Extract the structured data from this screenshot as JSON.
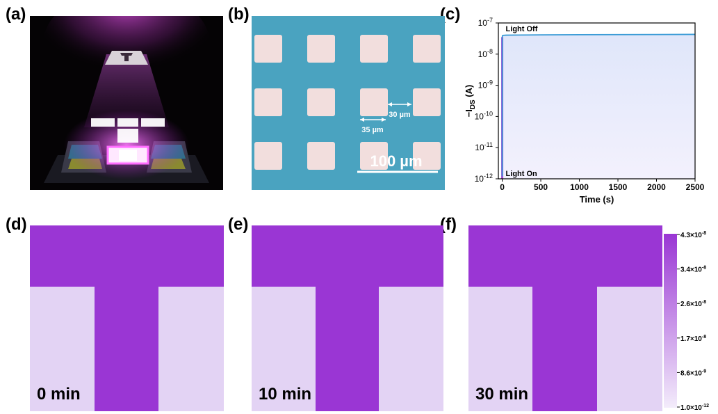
{
  "panels": {
    "a": "(a)",
    "b": "(b)",
    "c": "(c)",
    "d": "(d)",
    "e": "(e)",
    "f": "(f)"
  },
  "micrograph": {
    "scale_bar": "100 µm",
    "dim_gap": "30 µm",
    "dim_width": "35 µm"
  },
  "colors": {
    "bright": "#9a36d4",
    "dim": "#e3d3f4",
    "substrate": "#4aa3c0",
    "pad": "#f2dedd",
    "curve": "#3a9bd6",
    "onsetline": "#a64fd6"
  },
  "maps": [
    {
      "time": "0 min",
      "grid": [
        [
          1,
          1,
          1
        ],
        [
          0,
          1,
          0
        ],
        [
          0,
          1,
          0
        ]
      ]
    },
    {
      "time": "10 min",
      "grid": [
        [
          1,
          1,
          1
        ],
        [
          0,
          1,
          0
        ],
        [
          0,
          1,
          0
        ]
      ]
    },
    {
      "time": "30 min",
      "grid": [
        [
          1,
          1,
          1
        ],
        [
          0,
          1,
          0
        ],
        [
          0,
          1,
          0
        ]
      ]
    }
  ],
  "colorbar": {
    "ticks": [
      "4.3×10-8",
      "3.4×10-8",
      "2.6×10-8",
      "1.7×10-8",
      "8.6×10-9",
      "1.0×10-12"
    ],
    "max": 4.3e-08,
    "min": 1e-12
  },
  "chart_data": {
    "type": "line",
    "xlabel": "Time (s)",
    "ylabel": "−IDS (A)",
    "xlim": [
      -50,
      2500
    ],
    "ylim": [
      1e-12,
      1e-07
    ],
    "yscale": "log",
    "xticks": [
      0,
      500,
      1000,
      1500,
      2000,
      2500
    ],
    "yticks": [
      "10-12",
      "10-11",
      "10-10",
      "10-9",
      "10-8",
      "10-7"
    ],
    "annotations": [
      "Light Off",
      "Light On"
    ],
    "series": [
      {
        "x": [
          0,
          1,
          3,
          10,
          50,
          200,
          500,
          1000,
          1500,
          2000,
          2500
        ],
        "y": [
          1.2e-12,
          3.5e-08,
          3.9e-08,
          4e-08,
          4.05e-08,
          4.1e-08,
          4.15e-08,
          4.2e-08,
          4.22e-08,
          4.25e-08,
          4.3e-08
        ]
      }
    ]
  }
}
